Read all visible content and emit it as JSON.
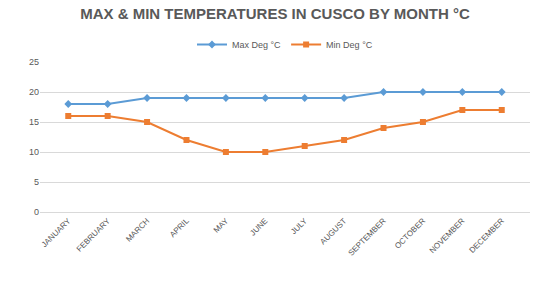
{
  "chart_data": {
    "type": "line",
    "title": "MAX & MIN TEMPERATURES IN CUSCO BY MONTH °C",
    "categories": [
      "JANUARY",
      "FEBRUARY",
      "MARCH",
      "APRIL",
      "MAY",
      "JUNE",
      "JULY",
      "AUGUST",
      "SEPTEMBER",
      "OCTOBER",
      "NOVEMBER",
      "DECEMBER"
    ],
    "series": [
      {
        "name": "Max Deg °C",
        "color": "#5b9bd5",
        "marker": "diamond",
        "values": [
          18,
          18,
          19,
          19,
          19,
          19,
          19,
          19,
          20,
          20,
          20,
          20
        ]
      },
      {
        "name": "Min Deg °C",
        "color": "#ed7d31",
        "marker": "square",
        "values": [
          16,
          16,
          15,
          12,
          10,
          10,
          11,
          12,
          14,
          15,
          17,
          17
        ]
      }
    ],
    "ylim": [
      0,
      25
    ],
    "yticks": [
      0,
      5,
      10,
      15,
      20,
      25
    ],
    "grid": true,
    "legend": "top"
  }
}
